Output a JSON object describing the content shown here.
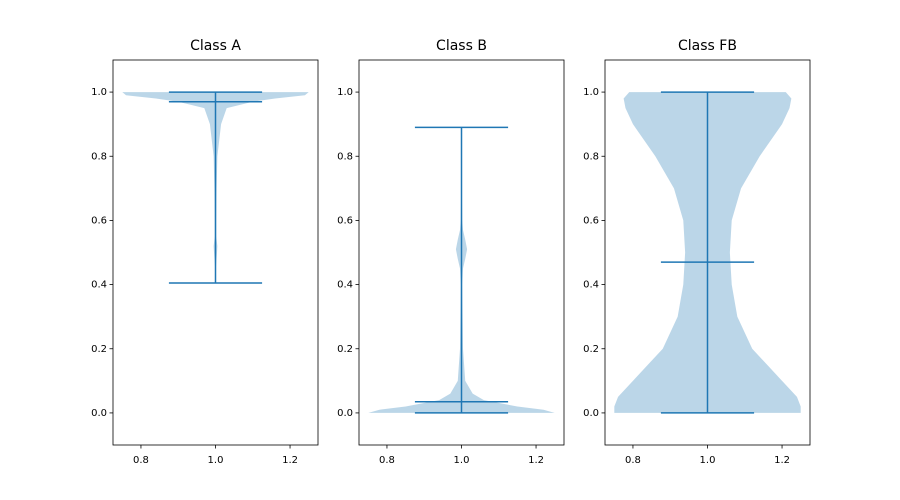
{
  "chart_data": [
    {
      "type": "violin",
      "title": "Class A",
      "color": "#1f77b4",
      "position": 1.0,
      "xlim": [
        0.725,
        1.275
      ],
      "ylim": [
        -0.1,
        1.1
      ],
      "xticks": [
        {
          "value": 0.8,
          "label": "0.8"
        },
        {
          "value": 1.0,
          "label": "1.0"
        },
        {
          "value": 1.2,
          "label": "1.2"
        }
      ],
      "yticks": [
        {
          "value": 0,
          "label": "0.0"
        },
        {
          "value": 0.2,
          "label": "0.2"
        },
        {
          "value": 0.4,
          "label": "0.4"
        },
        {
          "value": 0.6,
          "label": "0.6"
        },
        {
          "value": 0.8,
          "label": "0.8"
        },
        {
          "value": 1.0,
          "label": "1.0"
        }
      ],
      "violin": {
        "min": 0.405,
        "max": 1.0,
        "median": 0.97,
        "density": {
          "y": [
            0.405,
            0.45,
            0.5,
            0.52,
            0.55,
            0.6,
            0.7,
            0.8,
            0.9,
            0.95,
            0.97,
            0.98,
            0.99,
            1.0
          ],
          "halfwidth": [
            0,
            0.001,
            0.004,
            0.005,
            0.002,
            0.002,
            0.003,
            0.005,
            0.015,
            0.03,
            0.1,
            0.16,
            0.24,
            0.25
          ]
        }
      }
    },
    {
      "type": "violin",
      "title": "Class B",
      "color": "#1f77b4",
      "position": 1.0,
      "xlim": [
        0.725,
        1.275
      ],
      "ylim": [
        -0.1,
        1.1
      ],
      "xticks": [
        {
          "value": 0.8,
          "label": "0.8"
        },
        {
          "value": 1.0,
          "label": "1.0"
        },
        {
          "value": 1.2,
          "label": "1.2"
        }
      ],
      "yticks": [
        {
          "value": 0,
          "label": "0.0"
        },
        {
          "value": 0.2,
          "label": "0.2"
        },
        {
          "value": 0.4,
          "label": "0.4"
        },
        {
          "value": 0.6,
          "label": "0.6"
        },
        {
          "value": 0.8,
          "label": "0.8"
        },
        {
          "value": 1.0,
          "label": "1.0"
        }
      ],
      "violin": {
        "min": 0.0,
        "max": 0.89,
        "median": 0.035,
        "density": {
          "y": [
            0.0,
            0.01,
            0.02,
            0.04,
            0.06,
            0.1,
            0.2,
            0.4,
            0.45,
            0.48,
            0.51,
            0.54,
            0.57,
            0.6,
            0.7,
            0.89
          ],
          "halfwidth": [
            0.25,
            0.22,
            0.15,
            0.06,
            0.03,
            0.01,
            0.004,
            0.002,
            0.004,
            0.01,
            0.015,
            0.01,
            0.004,
            0.002,
            0.001,
            0
          ]
        }
      }
    },
    {
      "type": "violin",
      "title": "Class FB",
      "color": "#1f77b4",
      "position": 1.0,
      "xlim": [
        0.725,
        1.275
      ],
      "ylim": [
        -0.1,
        1.1
      ],
      "xticks": [
        {
          "value": 0.8,
          "label": "0.8"
        },
        {
          "value": 1.0,
          "label": "1.0"
        },
        {
          "value": 1.2,
          "label": "1.2"
        }
      ],
      "yticks": [
        {
          "value": 0,
          "label": "0.0"
        },
        {
          "value": 0.2,
          "label": "0.2"
        },
        {
          "value": 0.4,
          "label": "0.4"
        },
        {
          "value": 0.6,
          "label": "0.6"
        },
        {
          "value": 0.8,
          "label": "0.8"
        },
        {
          "value": 1.0,
          "label": "1.0"
        }
      ],
      "violin": {
        "min": 0.0,
        "max": 1.0,
        "median": 0.47,
        "density": {
          "y": [
            0.0,
            0.02,
            0.05,
            0.1,
            0.15,
            0.2,
            0.3,
            0.4,
            0.5,
            0.6,
            0.7,
            0.8,
            0.9,
            0.95,
            0.98,
            1.0
          ],
          "halfwidth": [
            0.25,
            0.25,
            0.24,
            0.2,
            0.16,
            0.12,
            0.08,
            0.065,
            0.06,
            0.065,
            0.09,
            0.14,
            0.2,
            0.22,
            0.225,
            0.21
          ]
        }
      }
    }
  ]
}
